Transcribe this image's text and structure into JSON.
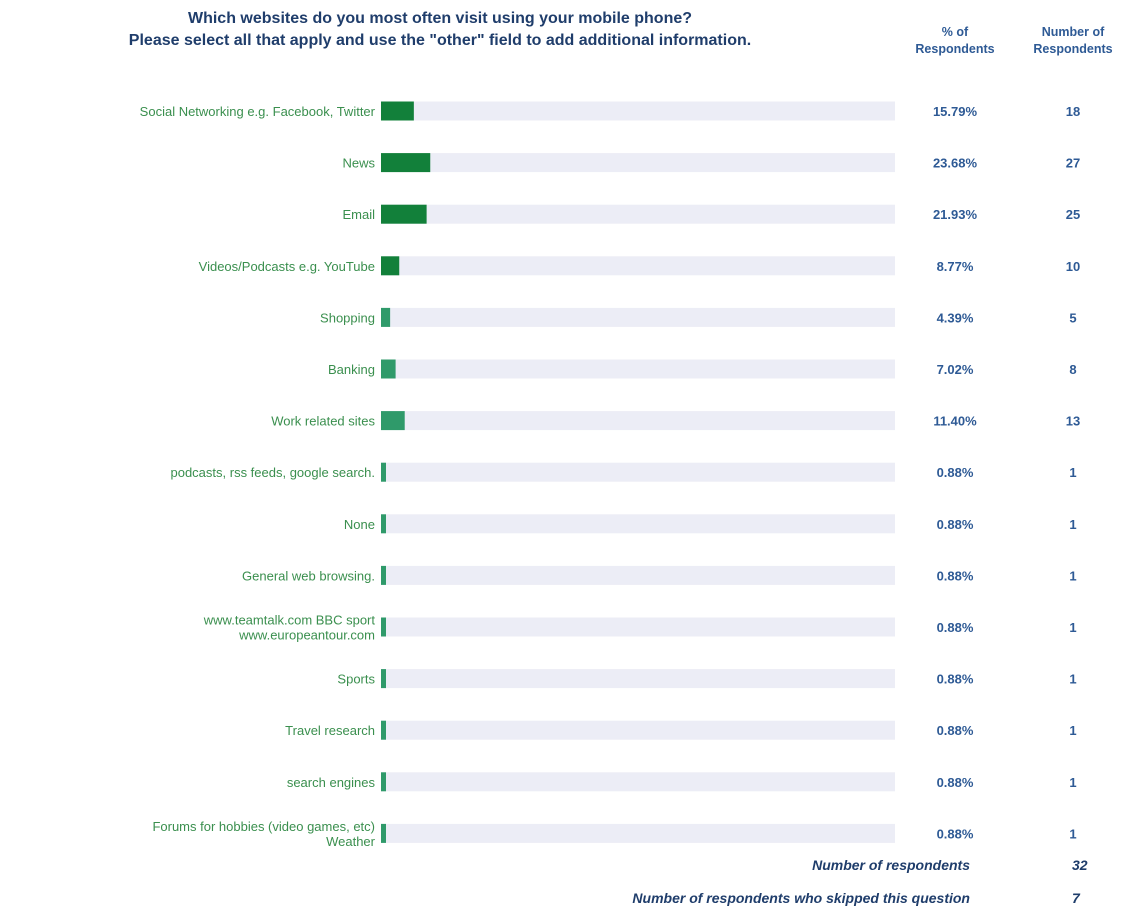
{
  "title": {
    "line1": "Which websites do you most often visit using your mobile phone?",
    "line2": "Please select all that apply and use the \"other\" field to add additional information."
  },
  "columns": {
    "pct_line1": "% of",
    "pct_line2": "Respondents",
    "count_line1": "Number of",
    "count_line2": "Respondents"
  },
  "colors": {
    "bar_dark": "#12803a",
    "bar_light": "#2f9a6a",
    "track": "#ecedf6",
    "label": "#3a8f4e",
    "value": "#2e5a95"
  },
  "chart_data": {
    "type": "bar",
    "orientation": "horizontal",
    "grid": false,
    "xlim": [
      0,
      100
    ],
    "categories": [
      [
        "Social Networking e.g. Facebook, Twitter"
      ],
      [
        "News"
      ],
      [
        "Email"
      ],
      [
        "Videos/Podcasts e.g. YouTube"
      ],
      [
        "Shopping"
      ],
      [
        "Banking"
      ],
      [
        "Work related sites"
      ],
      [
        "podcasts, rss feeds, google search."
      ],
      [
        "None"
      ],
      [
        "General web browsing."
      ],
      [
        "www.teamtalk.com BBC sport",
        "www.europeantour.com"
      ],
      [
        "Sports"
      ],
      [
        "Travel research"
      ],
      [
        "search engines"
      ],
      [
        "Forums for hobbies (video games, etc)",
        "Weather"
      ]
    ],
    "values": [
      15.79,
      23.68,
      21.93,
      8.77,
      4.39,
      7.02,
      11.4,
      0.88,
      0.88,
      0.88,
      0.88,
      0.88,
      0.88,
      0.88,
      0.88
    ],
    "value_labels": [
      "15.79%",
      "23.68%",
      "21.93%",
      "8.77%",
      "4.39%",
      "7.02%",
      "11.40%",
      "0.88%",
      "0.88%",
      "0.88%",
      "0.88%",
      "0.88%",
      "0.88%",
      "0.88%",
      "0.88%"
    ],
    "counts": [
      18,
      27,
      25,
      10,
      5,
      8,
      13,
      1,
      1,
      1,
      1,
      1,
      1,
      1,
      1
    ]
  },
  "summary": {
    "respondents_label": "Number of respondents",
    "respondents_value": "32",
    "skipped_label": "Number of respondents who skipped this question",
    "skipped_value": "7"
  }
}
